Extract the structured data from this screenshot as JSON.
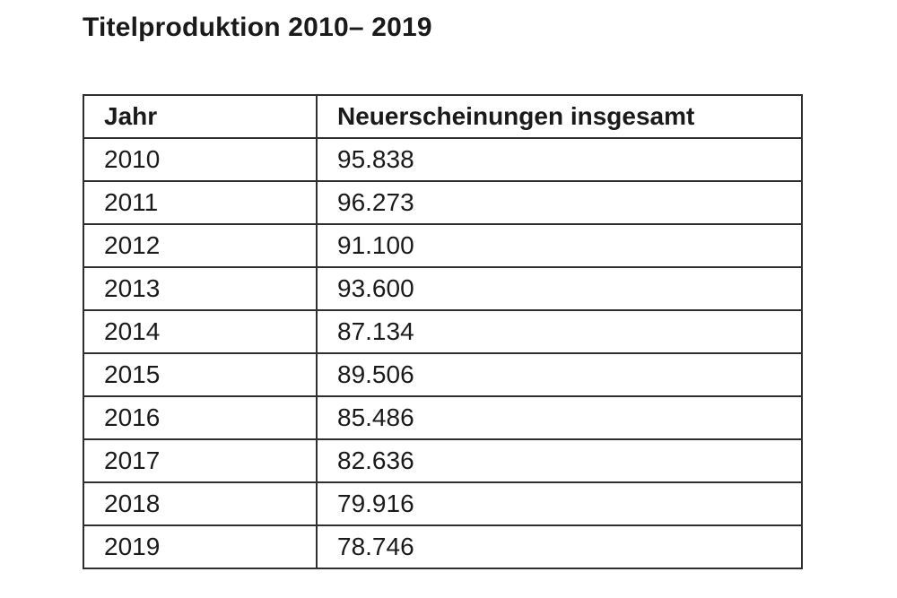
{
  "page": {
    "background": "#ffffff",
    "title": "Titelproduktion 2010– 2019"
  },
  "table": {
    "border_color": "#2f2f2f",
    "headers": [
      "Jahr",
      "Neuerscheinungen insgesamt"
    ],
    "rows": [
      {
        "jahr": "2010",
        "wert": "95.838"
      },
      {
        "jahr": "2011",
        "wert": "96.273"
      },
      {
        "jahr": "2012",
        "wert": "91.100"
      },
      {
        "jahr": "2013",
        "wert": "93.600"
      },
      {
        "jahr": "2014",
        "wert": "87.134"
      },
      {
        "jahr": "2015",
        "wert": "89.506"
      },
      {
        "jahr": "2016",
        "wert": "85.486"
      },
      {
        "jahr": "2017",
        "wert": "82.636"
      },
      {
        "jahr": "2018",
        "wert": "79.916"
      },
      {
        "jahr": "2019",
        "wert": "78.746"
      }
    ]
  },
  "chart_data": {
    "type": "table",
    "title": "Titelproduktion 2010– 2019",
    "columns": [
      "Jahr",
      "Neuerscheinungen insgesamt"
    ],
    "rows": [
      [
        "2010",
        "95.838"
      ],
      [
        "2011",
        "96.273"
      ],
      [
        "2012",
        "91.100"
      ],
      [
        "2013",
        "93.600"
      ],
      [
        "2014",
        "87.134"
      ],
      [
        "2015",
        "89.506"
      ],
      [
        "2016",
        "85.486"
      ],
      [
        "2017",
        "82.636"
      ],
      [
        "2018",
        "79.916"
      ],
      [
        "2019",
        "78.746"
      ]
    ],
    "years": [
      2010,
      2011,
      2012,
      2013,
      2014,
      2015,
      2016,
      2017,
      2018,
      2019
    ],
    "values_numeric": [
      95838,
      96273,
      91100,
      93600,
      87134,
      89506,
      85486,
      82636,
      79916,
      78746
    ]
  }
}
